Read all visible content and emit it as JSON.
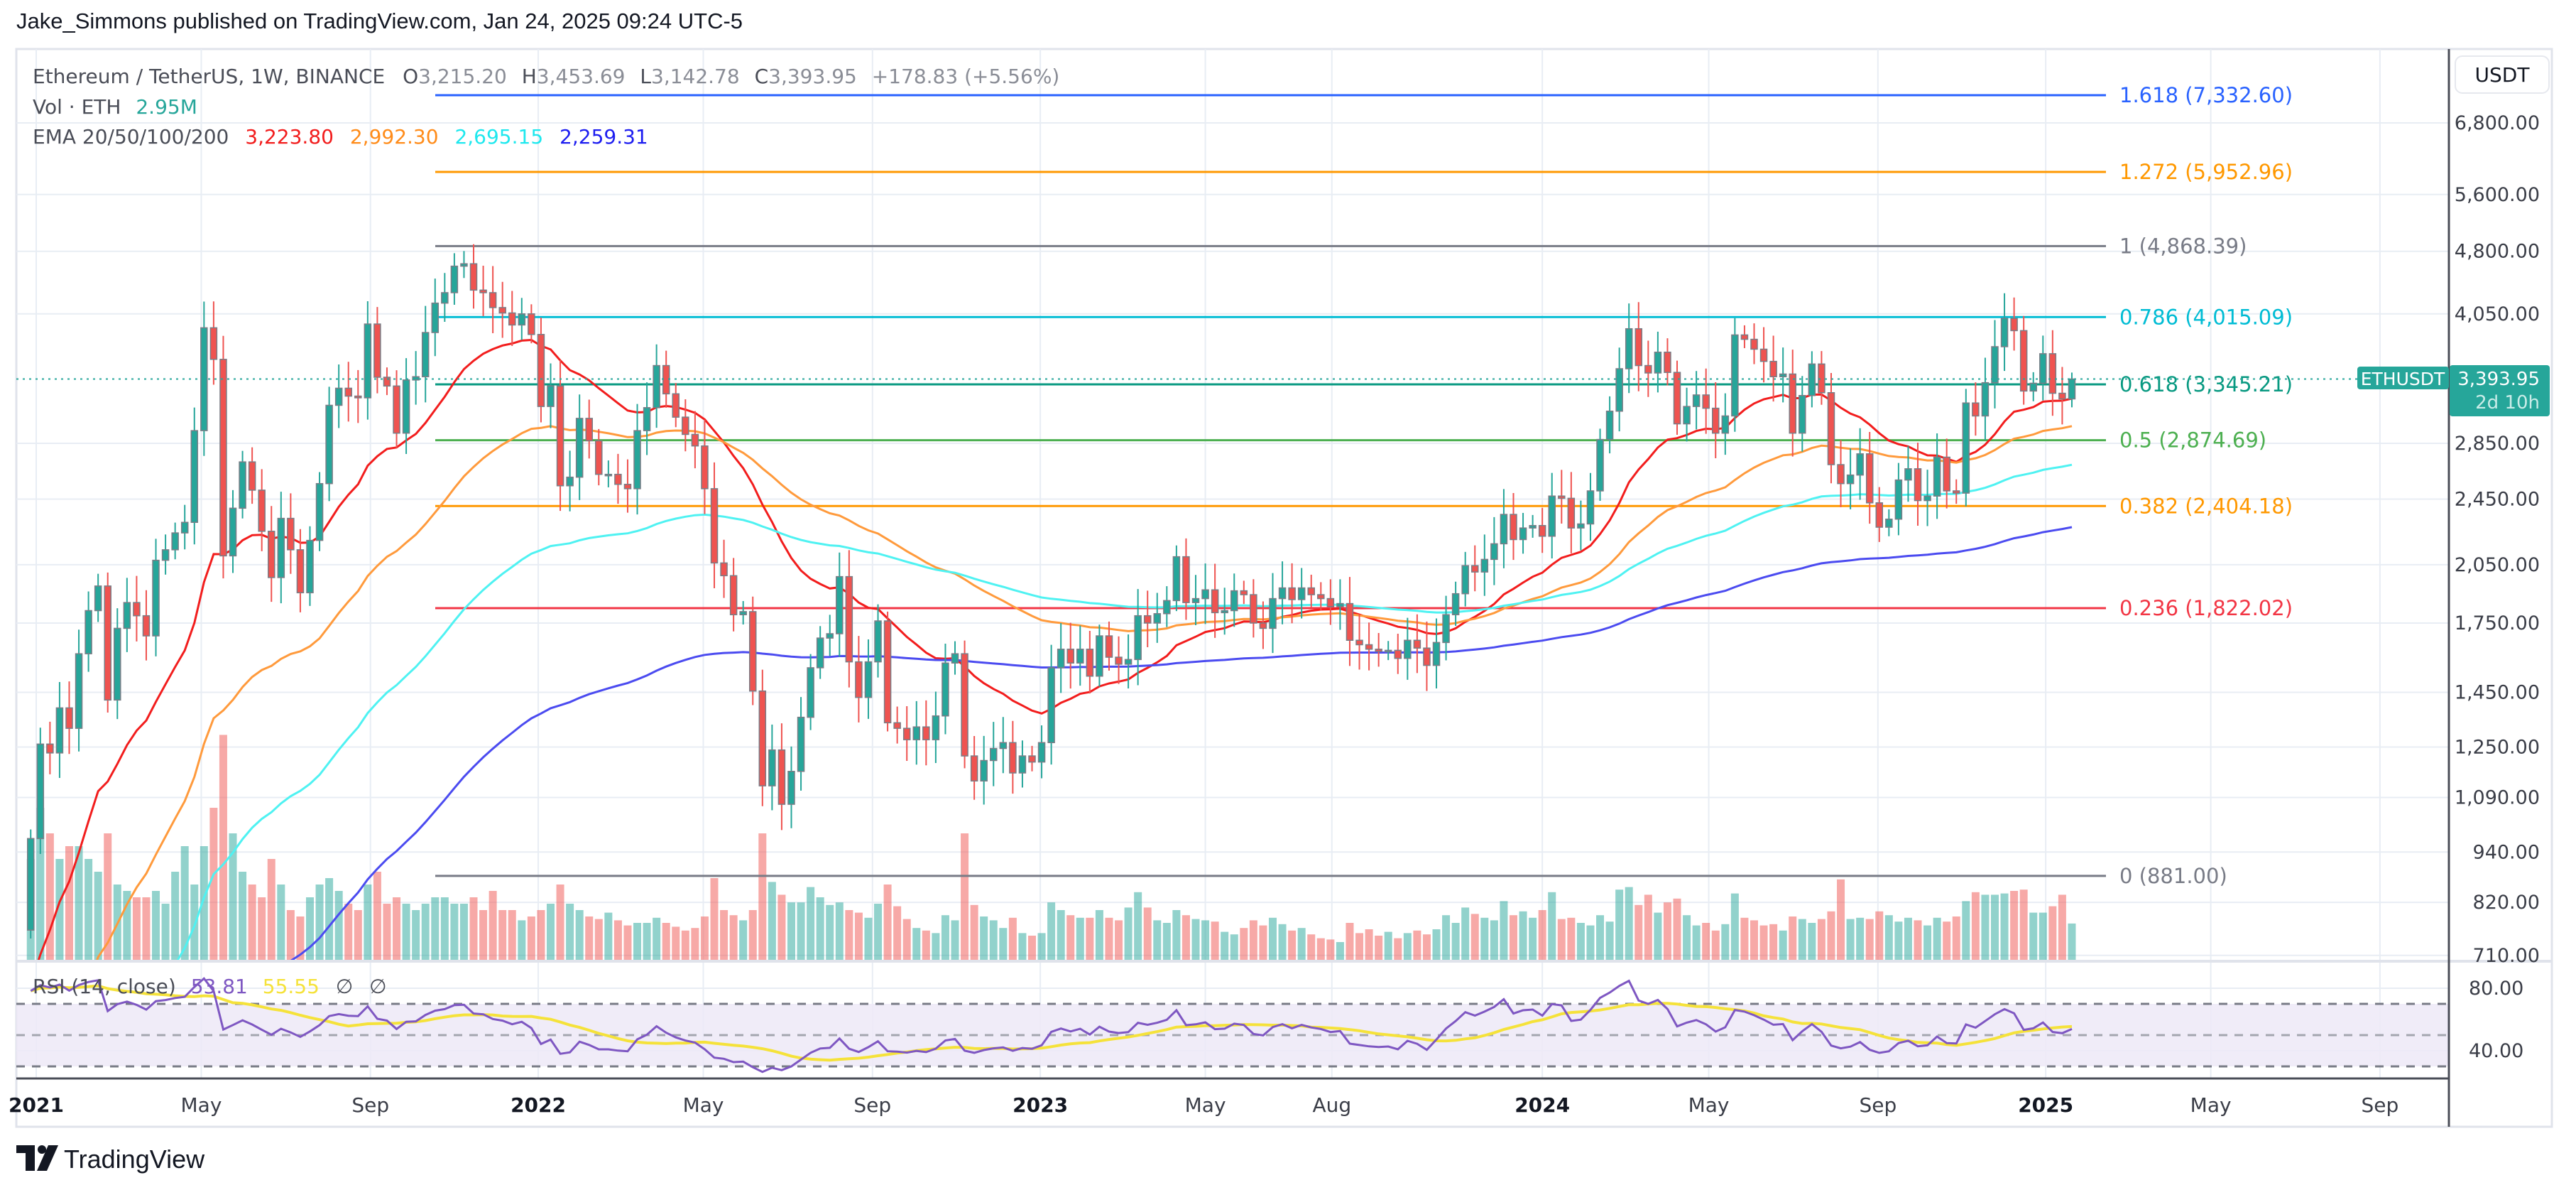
{
  "publisher_line": "Jake_Simmons published on TradingView.com, Jan 24, 2025 09:24 UTC-5",
  "legend": {
    "symbol": "Ethereum / TetherUS, 1W, BINANCE",
    "o_label": "O",
    "o_value": "3,215.20",
    "h_label": "H",
    "h_value": "3,453.69",
    "l_label": "L",
    "l_value": "3,142.78",
    "c_label": "C",
    "c_value": "3,393.95",
    "change": "+178.83 (+5.56%)",
    "vol_label": "Vol · ETH",
    "vol_value": "2.95M",
    "ema_label": "EMA 20/50/100/200",
    "ema_values": [
      "3,223.80",
      "2,992.30",
      "2,695.15",
      "2,259.31"
    ]
  },
  "rsi_legend": {
    "label": "RSI (14, close)",
    "value": "53.81",
    "ma_value": "55.55",
    "na1": "∅",
    "na2": "∅"
  },
  "currency_button": "USDT",
  "last_price": {
    "symbol_tag": "ETHUSDT",
    "price": "3,393.95",
    "countdown": "2d 10h"
  },
  "footer_logo": "TradingView",
  "colors": {
    "up": "#26a69a",
    "down": "#ef5350",
    "ema20": "#f21d1d",
    "ema50": "#ff9a3c",
    "ema100": "#4ff2f2",
    "ema200": "#4b4bf0",
    "rsi": "#7e57c2",
    "rsi_ma": "#f5e23a",
    "rsi_band": "#ede9f7",
    "grid": "#e8edf4",
    "border": "#e0e3eb"
  },
  "chart_data": {
    "type": "candlestick",
    "scale": "log",
    "ylabel": "USDT",
    "ylim": [
      700,
      7600
    ],
    "grid": true,
    "price_ticks": [
      {
        "label": "6,800.00",
        "value": 6800
      },
      {
        "label": "5,600.00",
        "value": 5600
      },
      {
        "label": "4,800.00",
        "value": 4800
      },
      {
        "label": "4,050.00",
        "value": 4050
      },
      {
        "label": "2,850.00",
        "value": 2850
      },
      {
        "label": "2,450.00",
        "value": 2450
      },
      {
        "label": "2,050.00",
        "value": 2050
      },
      {
        "label": "1,750.00",
        "value": 1750
      },
      {
        "label": "1,450.00",
        "value": 1450
      },
      {
        "label": "1,250.00",
        "value": 1250
      },
      {
        "label": "1,090.00",
        "value": 1090
      },
      {
        "label": "940.00",
        "value": 940
      },
      {
        "label": "820.00",
        "value": 820
      },
      {
        "label": "710.00",
        "value": 710
      }
    ],
    "time_ticks": [
      {
        "label": "2021",
        "date": "2021-01-01",
        "year": true
      },
      {
        "label": "May",
        "date": "2021-05-01"
      },
      {
        "label": "Sep",
        "date": "2021-09-01"
      },
      {
        "label": "2022",
        "date": "2022-01-01",
        "year": true
      },
      {
        "label": "May",
        "date": "2022-05-01"
      },
      {
        "label": "Sep",
        "date": "2022-09-01"
      },
      {
        "label": "2023",
        "date": "2023-01-01",
        "year": true
      },
      {
        "label": "May",
        "date": "2023-05-01"
      },
      {
        "label": "Aug",
        "date": "2023-08-01"
      },
      {
        "label": "2024",
        "date": "2024-01-01",
        "year": true
      },
      {
        "label": "May",
        "date": "2024-05-01"
      },
      {
        "label": "Sep",
        "date": "2024-09-01"
      },
      {
        "label": "2025",
        "date": "2025-01-01",
        "year": true
      },
      {
        "label": "May",
        "date": "2025-05-01"
      },
      {
        "label": "Sep",
        "date": "2025-09-01"
      }
    ],
    "fib_levels": [
      {
        "label": "1.618 (7,332.60)",
        "value": 7332.6,
        "color": "#2962ff"
      },
      {
        "label": "1.272 (5,952.96)",
        "value": 5952.96,
        "color": "#ff9800"
      },
      {
        "label": "1 (4,868.39)",
        "value": 4868.39,
        "color": "#787b86"
      },
      {
        "label": "0.786 (4,015.09)",
        "value": 4015.09,
        "color": "#00bcd4"
      },
      {
        "label": "0.618 (3,345.21)",
        "value": 3345.21,
        "color": "#089981"
      },
      {
        "label": "0.5 (2,874.69)",
        "value": 2874.69,
        "color": "#4caf50"
      },
      {
        "label": "0.382 (2,404.18)",
        "value": 2404.18,
        "color": "#ff9800"
      },
      {
        "label": "0.236 (1,822.02)",
        "value": 1822.02,
        "color": "#f23645"
      },
      {
        "label": "0 (881.00)",
        "value": 881.0,
        "color": "#787b86"
      }
    ],
    "ema_periods": [
      20,
      50,
      100,
      200
    ],
    "rsi": {
      "length": 14,
      "ma_length": 14,
      "bands": [
        70,
        50,
        30
      ],
      "ticks": [
        {
          "label": "80.00",
          "value": 80
        },
        {
          "label": "40.00",
          "value": 40
        }
      ]
    },
    "last_bar": {
      "date": "2025-01-20",
      "open": 3215.2,
      "high": 3453.69,
      "low": 3142.78,
      "close": 3393.95,
      "volume_m": 2.95
    },
    "weekly_columns": [
      "week",
      "close",
      "volume_m"
    ],
    "weekly": [
      [
        "2020-12-28",
        975,
        8
      ],
      [
        "2021-01-04",
        1260,
        12
      ],
      [
        "2021-01-11",
        1230,
        10
      ],
      [
        "2021-01-18",
        1390,
        8
      ],
      [
        "2021-01-25",
        1315,
        9
      ],
      [
        "2021-02-01",
        1610,
        9
      ],
      [
        "2021-02-08",
        1810,
        8
      ],
      [
        "2021-02-15",
        1935,
        7
      ],
      [
        "2021-02-22",
        1420,
        10
      ],
      [
        "2021-03-01",
        1725,
        6
      ],
      [
        "2021-03-08",
        1850,
        5.5
      ],
      [
        "2021-03-15",
        1785,
        5
      ],
      [
        "2021-03-22",
        1690,
        5
      ],
      [
        "2021-03-29",
        2075,
        5.5
      ],
      [
        "2021-04-05",
        2135,
        4.5
      ],
      [
        "2021-04-12",
        2235,
        7
      ],
      [
        "2021-04-19",
        2300,
        9
      ],
      [
        "2021-04-26",
        2950,
        6
      ],
      [
        "2021-05-03",
        3900,
        9
      ],
      [
        "2021-05-10",
        3580,
        12
      ],
      [
        "2021-05-17",
        2100,
        17.7
      ],
      [
        "2021-05-24",
        2390,
        10
      ],
      [
        "2021-05-31",
        2710,
        7
      ],
      [
        "2021-06-07",
        2510,
        6
      ],
      [
        "2021-06-14",
        2245,
        5
      ],
      [
        "2021-06-21",
        1980,
        8
      ],
      [
        "2021-06-28",
        2325,
        6
      ],
      [
        "2021-07-05",
        2135,
        4
      ],
      [
        "2021-07-12",
        1900,
        3.5
      ],
      [
        "2021-07-19",
        2190,
        5
      ],
      [
        "2021-07-26",
        2555,
        6
      ],
      [
        "2021-08-02",
        3160,
        6.5
      ],
      [
        "2021-08-09",
        3310,
        5.5
      ],
      [
        "2021-08-16",
        3240,
        4.5
      ],
      [
        "2021-08-23",
        3225,
        4
      ],
      [
        "2021-08-30",
        3940,
        6
      ],
      [
        "2021-09-06",
        3410,
        7
      ],
      [
        "2021-09-13",
        3330,
        4.5
      ],
      [
        "2021-09-20",
        2930,
        5
      ],
      [
        "2021-09-27",
        3385,
        4.5
      ],
      [
        "2021-10-04",
        3415,
        4
      ],
      [
        "2021-10-11",
        3850,
        4.5
      ],
      [
        "2021-10-18",
        4170,
        5
      ],
      [
        "2021-10-25",
        4290,
        5
      ],
      [
        "2021-11-01",
        4610,
        4.5
      ],
      [
        "2021-11-08",
        4640,
        4.5
      ],
      [
        "2021-11-15",
        4320,
        5
      ],
      [
        "2021-11-22",
        4290,
        4
      ],
      [
        "2021-11-29",
        4120,
        5.5
      ],
      [
        "2021-12-06",
        4060,
        4
      ],
      [
        "2021-12-13",
        3930,
        4
      ],
      [
        "2021-12-20",
        4050,
        3.2
      ],
      [
        "2021-12-27",
        3830,
        3.5
      ],
      [
        "2022-01-03",
        3150,
        4
      ],
      [
        "2022-01-10",
        3330,
        4.5
      ],
      [
        "2022-01-17",
        2540,
        6
      ],
      [
        "2022-01-24",
        2600,
        4.5
      ],
      [
        "2022-01-31",
        3050,
        4
      ],
      [
        "2022-02-07",
        2870,
        3.5
      ],
      [
        "2022-02-14",
        2620,
        3.3
      ],
      [
        "2022-02-21",
        2620,
        3.8
      ],
      [
        "2022-02-28",
        2550,
        3.2
      ],
      [
        "2022-03-07",
        2520,
        2.8
      ],
      [
        "2022-03-14",
        2950,
        3
      ],
      [
        "2022-03-21",
        3140,
        3
      ],
      [
        "2022-03-28",
        3520,
        3.4
      ],
      [
        "2022-04-04",
        3260,
        3
      ],
      [
        "2022-04-11",
        3060,
        2.7
      ],
      [
        "2022-04-18",
        2920,
        2.4
      ],
      [
        "2022-04-25",
        2830,
        2.6
      ],
      [
        "2022-05-02",
        2520,
        3.5
      ],
      [
        "2022-05-09",
        2060,
        6.5
      ],
      [
        "2022-05-16",
        1990,
        4
      ],
      [
        "2022-05-23",
        1790,
        3.6
      ],
      [
        "2022-05-30",
        1805,
        3.2
      ],
      [
        "2022-06-06",
        1455,
        4
      ],
      [
        "2022-06-13",
        1125,
        10
      ],
      [
        "2022-06-20",
        1240,
        6.2
      ],
      [
        "2022-06-27",
        1070,
        5.2
      ],
      [
        "2022-07-04",
        1170,
        4.6
      ],
      [
        "2022-07-11",
        1355,
        4.6
      ],
      [
        "2022-07-18",
        1550,
        5.8
      ],
      [
        "2022-07-25",
        1680,
        5
      ],
      [
        "2022-08-01",
        1700,
        4.4
      ],
      [
        "2022-08-08",
        1985,
        4.6
      ],
      [
        "2022-08-15",
        1575,
        4
      ],
      [
        "2022-08-22",
        1430,
        3.8
      ],
      [
        "2022-08-29",
        1575,
        3.4
      ],
      [
        "2022-09-05",
        1760,
        4.5
      ],
      [
        "2022-09-12",
        1335,
        6
      ],
      [
        "2022-09-19",
        1315,
        4.3
      ],
      [
        "2022-09-26",
        1275,
        3.3
      ],
      [
        "2022-10-03",
        1320,
        2.6
      ],
      [
        "2022-10-10",
        1275,
        2.4
      ],
      [
        "2022-10-17",
        1360,
        2.2
      ],
      [
        "2022-10-24",
        1570,
        3.6
      ],
      [
        "2022-10-31",
        1610,
        3.2
      ],
      [
        "2022-11-07",
        1220,
        10
      ],
      [
        "2022-11-14",
        1140,
        4.4
      ],
      [
        "2022-11-21",
        1205,
        3.5
      ],
      [
        "2022-11-28",
        1245,
        3.2
      ],
      [
        "2022-12-05",
        1265,
        2.6
      ],
      [
        "2022-12-12",
        1165,
        3.4
      ],
      [
        "2022-12-19",
        1220,
        2.2
      ],
      [
        "2022-12-26",
        1200,
        2
      ],
      [
        "2023-01-02",
        1265,
        2.2
      ],
      [
        "2023-01-09",
        1550,
        4.6
      ],
      [
        "2023-01-16",
        1630,
        4
      ],
      [
        "2023-01-23",
        1570,
        3.6
      ],
      [
        "2023-01-30",
        1630,
        3.4
      ],
      [
        "2023-02-06",
        1515,
        3.4
      ],
      [
        "2023-02-13",
        1690,
        4
      ],
      [
        "2023-02-20",
        1595,
        3.4
      ],
      [
        "2023-02-27",
        1565,
        3.2
      ],
      [
        "2023-03-06",
        1585,
        4.2
      ],
      [
        "2023-03-13",
        1785,
        5.4
      ],
      [
        "2023-03-20",
        1750,
        4.2
      ],
      [
        "2023-03-27",
        1795,
        3.2
      ],
      [
        "2023-04-03",
        1860,
        3
      ],
      [
        "2023-04-10",
        2095,
        4
      ],
      [
        "2023-04-17",
        1850,
        3.6
      ],
      [
        "2023-04-24",
        1870,
        3.3
      ],
      [
        "2023-05-01",
        1915,
        3.2
      ],
      [
        "2023-05-08",
        1800,
        3.1
      ],
      [
        "2023-05-15",
        1810,
        2.3
      ],
      [
        "2023-05-22",
        1910,
        2.1
      ],
      [
        "2023-05-29",
        1890,
        2.6
      ],
      [
        "2023-06-05",
        1750,
        3.2
      ],
      [
        "2023-06-12",
        1725,
        2.8
      ],
      [
        "2023-06-19",
        1870,
        3.4
      ],
      [
        "2023-06-26",
        1925,
        2.9
      ],
      [
        "2023-07-03",
        1865,
        2.4
      ],
      [
        "2023-07-10",
        1925,
        2.6
      ],
      [
        "2023-07-17",
        1890,
        2.1
      ],
      [
        "2023-07-24",
        1870,
        1.8
      ],
      [
        "2023-07-31",
        1830,
        1.7
      ],
      [
        "2023-08-07",
        1845,
        1.5
      ],
      [
        "2023-08-14",
        1670,
        3
      ],
      [
        "2023-08-21",
        1650,
        2.2
      ],
      [
        "2023-08-28",
        1630,
        2.5
      ],
      [
        "2023-09-04",
        1620,
        2
      ],
      [
        "2023-09-11",
        1625,
        2.3
      ],
      [
        "2023-09-18",
        1590,
        1.8
      ],
      [
        "2023-09-25",
        1670,
        2.2
      ],
      [
        "2023-10-02",
        1635,
        2.4
      ],
      [
        "2023-10-09",
        1560,
        2.1
      ],
      [
        "2023-10-16",
        1660,
        2.5
      ],
      [
        "2023-10-23",
        1790,
        3.6
      ],
      [
        "2023-10-30",
        1895,
        3
      ],
      [
        "2023-11-06",
        2045,
        4.2
      ],
      [
        "2023-11-13",
        2010,
        3.7
      ],
      [
        "2023-11-20",
        2080,
        3.4
      ],
      [
        "2023-11-27",
        2170,
        3.2
      ],
      [
        "2023-12-04",
        2350,
        4.7
      ],
      [
        "2023-12-11",
        2195,
        3.6
      ],
      [
        "2023-12-18",
        2265,
        3.9
      ],
      [
        "2023-12-25",
        2280,
        3.4
      ],
      [
        "2024-01-01",
        2215,
        4
      ],
      [
        "2024-01-08",
        2470,
        5.4
      ],
      [
        "2024-01-15",
        2455,
        3.3
      ],
      [
        "2024-01-22",
        2265,
        3.4
      ],
      [
        "2024-01-29",
        2290,
        3
      ],
      [
        "2024-02-05",
        2505,
        2.8
      ],
      [
        "2024-02-12",
        2880,
        3.6
      ],
      [
        "2024-02-19",
        3110,
        3.1
      ],
      [
        "2024-02-26",
        3490,
        5.6
      ],
      [
        "2024-03-04",
        3890,
        5.8
      ],
      [
        "2024-03-11",
        3520,
        4.4
      ],
      [
        "2024-03-18",
        3450,
        5.2
      ],
      [
        "2024-03-25",
        3650,
        3.8
      ],
      [
        "2024-04-01",
        3455,
        4.6
      ],
      [
        "2024-04-08",
        3005,
        4.9
      ],
      [
        "2024-04-15",
        3150,
        3.6
      ],
      [
        "2024-04-22",
        3250,
        2.8
      ],
      [
        "2024-04-29",
        3135,
        3
      ],
      [
        "2024-05-06",
        2930,
        2.4
      ],
      [
        "2024-05-13",
        3070,
        2.9
      ],
      [
        "2024-05-20",
        3825,
        5.3
      ],
      [
        "2024-05-27",
        3780,
        3.4
      ],
      [
        "2024-06-03",
        3680,
        3.2
      ],
      [
        "2024-06-10",
        3560,
        2.8
      ],
      [
        "2024-06-17",
        3415,
        2.9
      ],
      [
        "2024-06-24",
        3440,
        2.4
      ],
      [
        "2024-07-01",
        2930,
        3.5
      ],
      [
        "2024-07-08",
        3245,
        3.3
      ],
      [
        "2024-07-15",
        3535,
        3
      ],
      [
        "2024-07-22",
        3270,
        3.3
      ],
      [
        "2024-07-29",
        2690,
        3.9
      ],
      [
        "2024-08-05",
        2555,
        6.4
      ],
      [
        "2024-08-12",
        2615,
        3.3
      ],
      [
        "2024-08-19",
        2770,
        3.4
      ],
      [
        "2024-08-26",
        2425,
        3.3
      ],
      [
        "2024-09-02",
        2270,
        3.9
      ],
      [
        "2024-09-09",
        2320,
        3.6
      ],
      [
        "2024-09-16",
        2580,
        3.1
      ],
      [
        "2024-09-23",
        2660,
        3.4
      ],
      [
        "2024-09-30",
        2440,
        3.2
      ],
      [
        "2024-10-07",
        2470,
        2.8
      ],
      [
        "2024-10-14",
        2745,
        3.4
      ],
      [
        "2024-10-21",
        2505,
        3.1
      ],
      [
        "2024-10-28",
        2490,
        3.5
      ],
      [
        "2024-11-04",
        3180,
        4.7
      ],
      [
        "2024-11-11",
        3070,
        5.4
      ],
      [
        "2024-11-18",
        3360,
        5.2
      ],
      [
        "2024-11-25",
        3705,
        5.2
      ],
      [
        "2024-12-02",
        4000,
        5.3
      ],
      [
        "2024-12-09",
        3870,
        5.5
      ],
      [
        "2024-12-16",
        3285,
        5.6
      ],
      [
        "2024-12-23",
        3355,
        3.8
      ],
      [
        "2024-12-30",
        3635,
        3.8
      ],
      [
        "2025-01-06",
        3265,
        4.3
      ],
      [
        "2025-01-13",
        3215,
        5.2
      ]
    ]
  }
}
